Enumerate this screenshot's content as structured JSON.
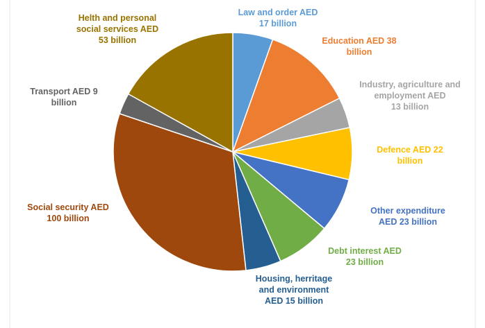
{
  "chart_data": {
    "type": "pie",
    "title": "",
    "unit": "AED billion",
    "slices": [
      {
        "value": 17,
        "color": "#5b9bd5",
        "label": "Law and order AED\n17 billion"
      },
      {
        "value": 38,
        "color": "#ed7d31",
        "label": "Education AED 38\nbillion"
      },
      {
        "value": 13,
        "color": "#a5a5a5",
        "label": "Industry, agriculture and\nemployment AED\n13 billion"
      },
      {
        "value": 22,
        "color": "#ffc000",
        "label": "Defence AED 22\nbillion"
      },
      {
        "value": 23,
        "color": "#4472c4",
        "label": "Other expenditure\nAED 23 billion"
      },
      {
        "value": 23,
        "color": "#70ad47",
        "label": "Debt interest AED\n23 billion"
      },
      {
        "value": 15,
        "color": "#255e91",
        "label": "Housing, herritage\nand environment\nAED 15 billion"
      },
      {
        "value": 100,
        "color": "#9e480e",
        "label": "Social security AED\n100 billion"
      },
      {
        "value": 9,
        "color": "#636363",
        "label": "Transport AED 9\nbillion"
      },
      {
        "value": 53,
        "color": "#997300",
        "label": "Helth and personal\nsocial services AED\n53 billion"
      }
    ]
  }
}
